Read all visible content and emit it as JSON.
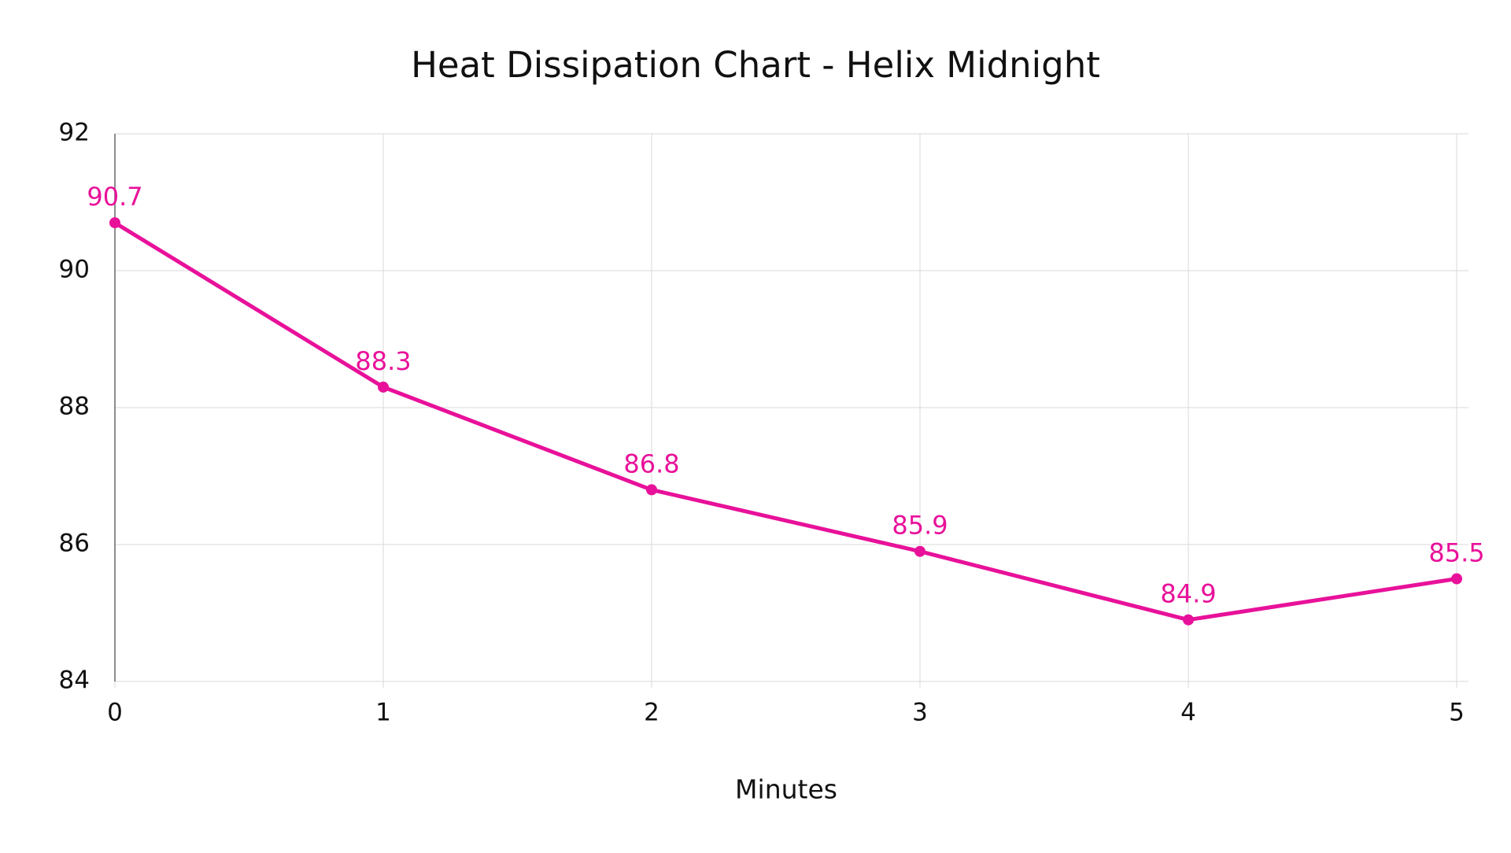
{
  "chart_data": {
    "type": "line",
    "title": "Heat Dissipation Chart - Helix Midnight",
    "x_label": "Minutes",
    "x": [
      0,
      1,
      2,
      3,
      4,
      5
    ],
    "values": [
      90.7,
      88.3,
      86.8,
      85.9,
      84.9,
      85.5
    ],
    "color": "#e8119a",
    "xlim": [
      0,
      5
    ],
    "xticks": [
      0,
      1,
      2,
      3,
      4,
      5
    ],
    "ylim": [
      84,
      92
    ],
    "yticks": [
      84,
      86,
      88,
      90,
      92
    ],
    "grid": true,
    "data_labels": true
  }
}
